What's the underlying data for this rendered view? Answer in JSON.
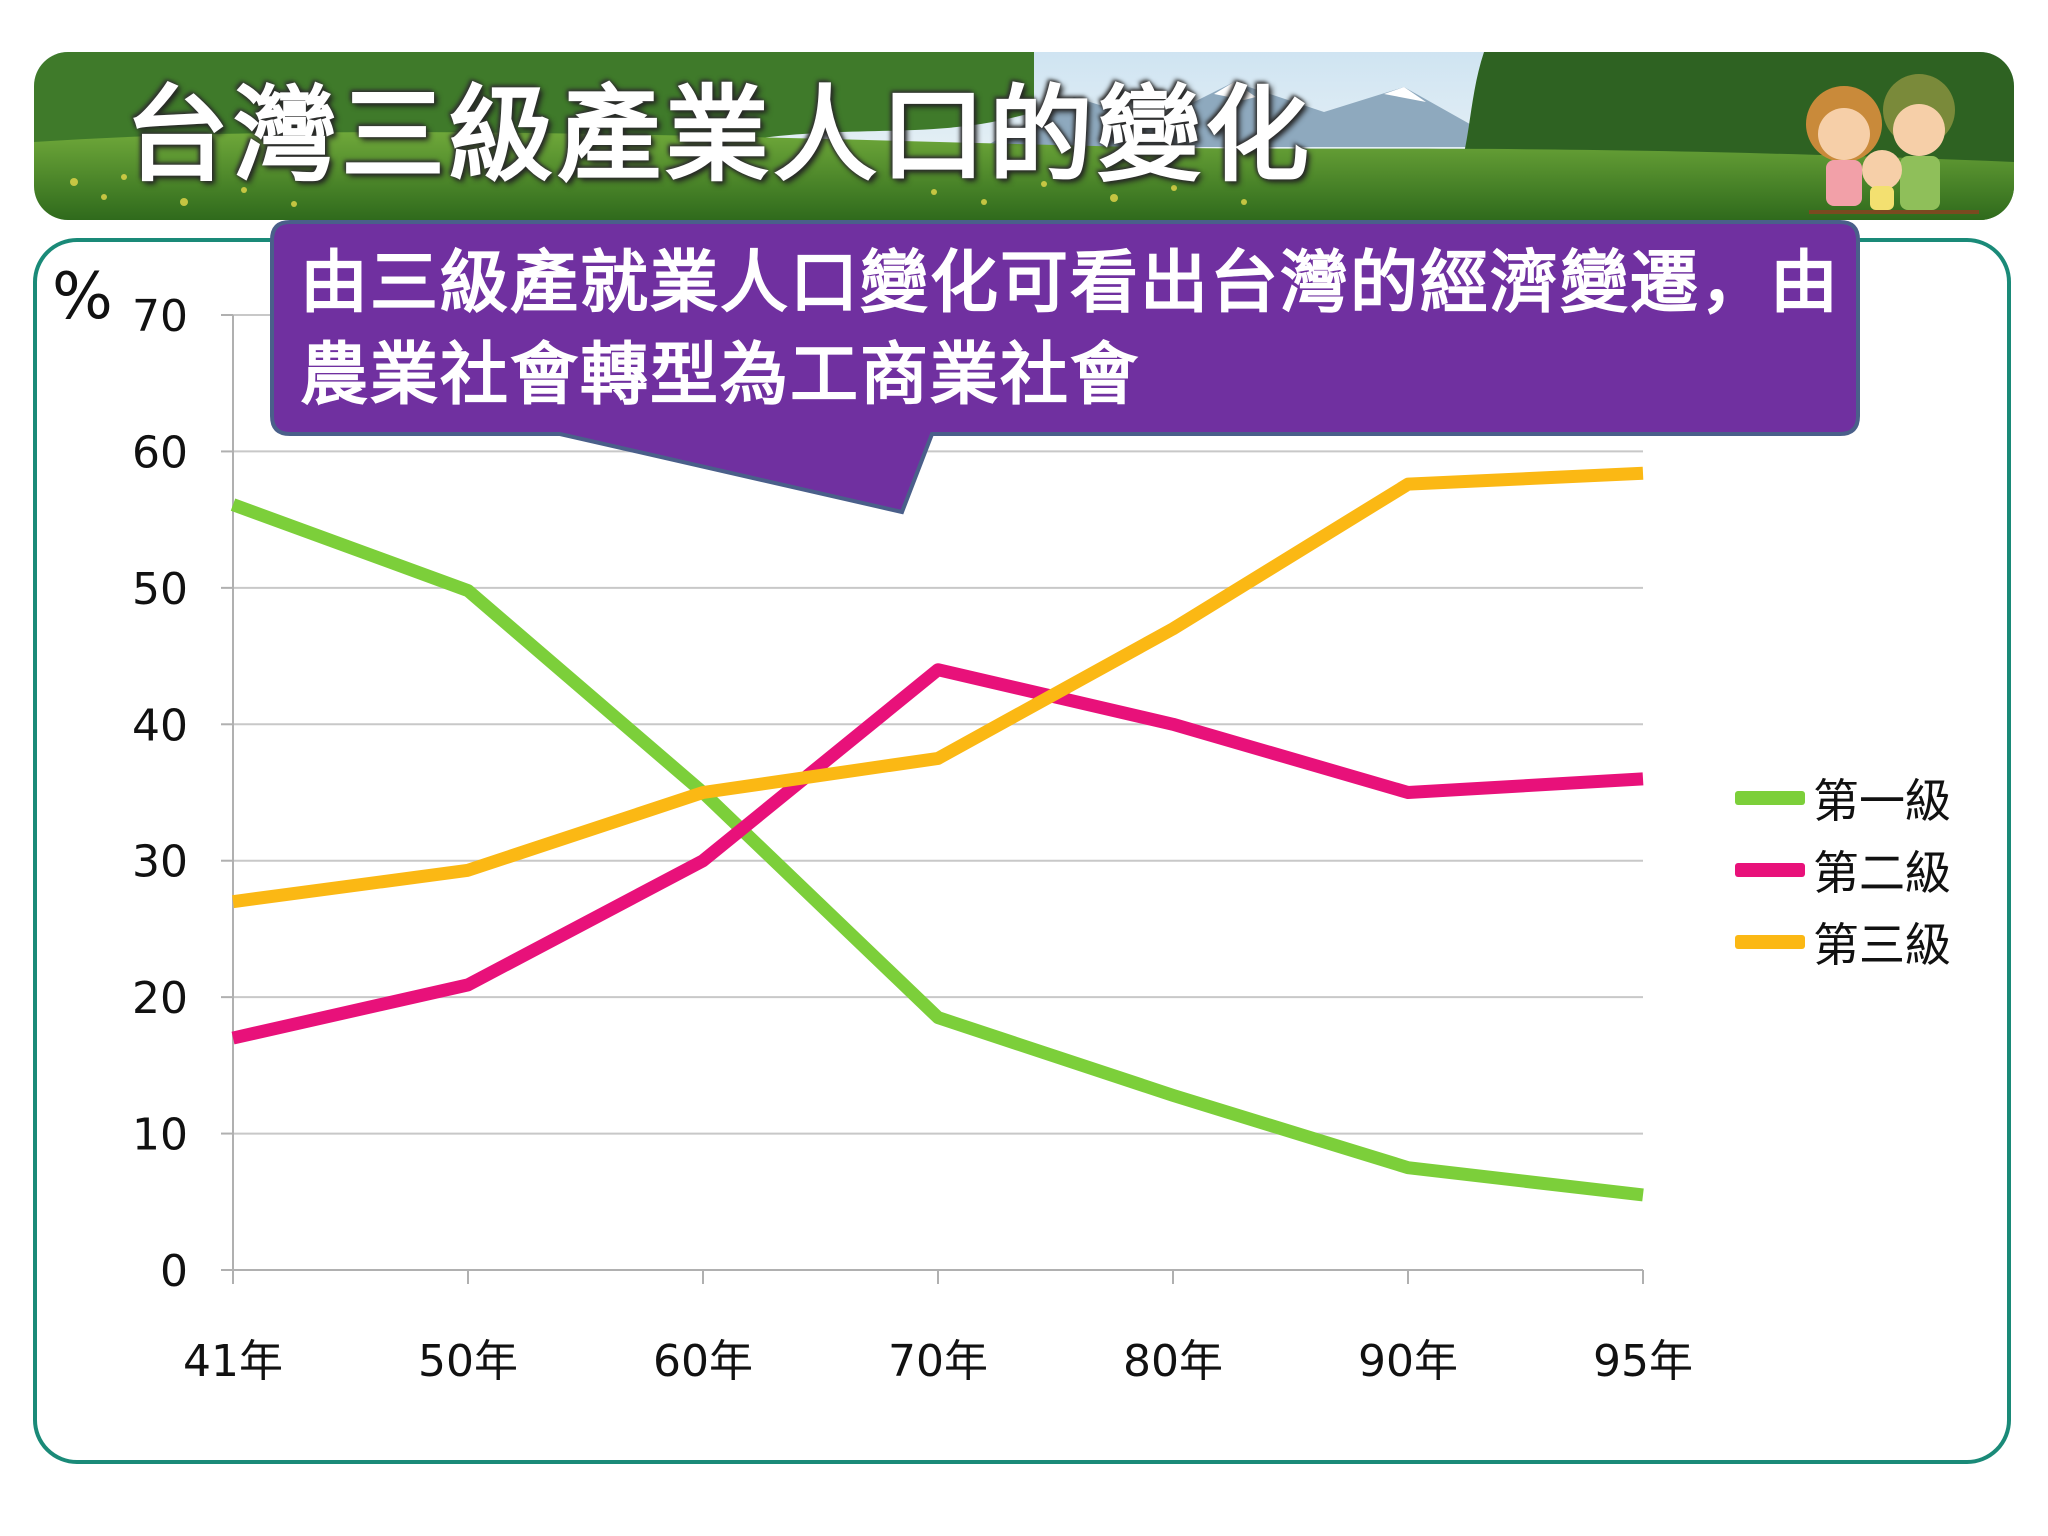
{
  "title": "台灣三級產業人口的變化",
  "callout": {
    "text": "由三級產就業人口變化可看出台灣的經濟變遷，由農業社會轉型為工商業社會"
  },
  "colors": {
    "frame": "#1a8a78",
    "callout_fill": "#7030a0",
    "primary": "#7ccf3a",
    "secondary": "#e8117a",
    "tertiary": "#fbb814"
  },
  "chart_data": {
    "type": "line",
    "unit_label": "%",
    "categories": [
      "41年",
      "50年",
      "60年",
      "70年",
      "80年",
      "90年",
      "95年"
    ],
    "ylim": [
      0,
      70
    ],
    "yticks": [
      0,
      10,
      20,
      30,
      40,
      50,
      60,
      70
    ],
    "grid": true,
    "legend_position": "right",
    "series": [
      {
        "name": "第一級",
        "color": "#7ccf3a",
        "values": [
          56.1,
          49.8,
          35.0,
          18.5,
          12.8,
          7.5,
          5.5
        ]
      },
      {
        "name": "第二級",
        "color": "#e8117a",
        "values": [
          17.0,
          20.9,
          30.0,
          44.0,
          40.0,
          35.0,
          36.0
        ]
      },
      {
        "name": "第三級",
        "color": "#fbb814",
        "values": [
          27.0,
          29.3,
          35.0,
          37.5,
          47.0,
          57.6,
          58.4
        ]
      }
    ]
  }
}
